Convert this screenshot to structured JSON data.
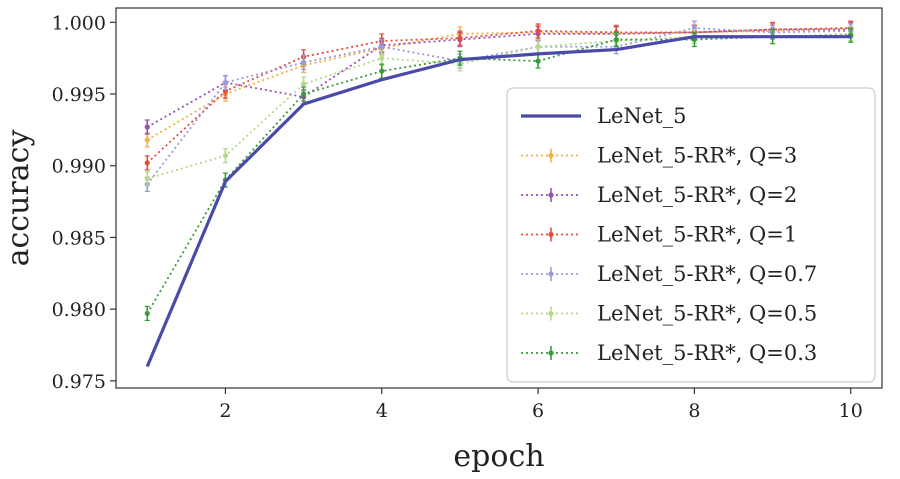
{
  "chart_data": {
    "type": "line",
    "xlabel": "epoch",
    "ylabel": "accuracy",
    "xlim": [
      0.6,
      10.4
    ],
    "ylim": [
      0.9745,
      1.001
    ],
    "x_ticks": [
      2,
      4,
      6,
      8,
      10
    ],
    "y_ticks": [
      0.975,
      0.98,
      0.985,
      0.99,
      0.995,
      1.0
    ],
    "y_tick_labels": [
      "0.975",
      "0.980",
      "0.985",
      "0.990",
      "0.995",
      "1.000"
    ],
    "x_tick_labels": [
      "2",
      "4",
      "6",
      "8",
      "10"
    ],
    "grid": false,
    "legend_position": "lower-right",
    "x": [
      1,
      2,
      3,
      4,
      5,
      6,
      7,
      8,
      9,
      10
    ],
    "series": [
      {
        "name": "LeNet_5",
        "color": "#4a4aa8",
        "style": "solid",
        "error_bars": false,
        "values": [
          0.976,
          0.9889,
          0.9943,
          0.996,
          0.9974,
          0.9978,
          0.9981,
          0.999,
          0.999,
          0.999
        ]
      },
      {
        "name": "LeNet_5-RR*, Q=3",
        "color": "#f5b041",
        "style": "dotted",
        "error_bars": true,
        "values": [
          0.9918,
          0.995,
          0.997,
          0.9982,
          0.9992,
          0.9993,
          0.9992,
          0.9993,
          0.9994,
          0.9996
        ]
      },
      {
        "name": "LeNet_5-RR*, Q=2",
        "color": "#9b4fb5",
        "style": "dotted",
        "error_bars": true,
        "values": [
          0.9927,
          0.9958,
          0.9948,
          0.9984,
          0.9988,
          0.9992,
          0.9992,
          0.9993,
          0.9995,
          0.9995
        ]
      },
      {
        "name": "LeNet_5-RR*, Q=1",
        "color": "#e74c3c",
        "style": "dotted",
        "error_bars": true,
        "values": [
          0.9902,
          0.9952,
          0.9976,
          0.9987,
          0.9989,
          0.9994,
          0.9993,
          0.9993,
          0.9995,
          0.9996
        ]
      },
      {
        "name": "LeNet_5-RR*, Q=0.7",
        "color": "#9a9ae0",
        "style": "dotted",
        "error_bars": true,
        "values": [
          0.9887,
          0.9958,
          0.9972,
          0.9983,
          0.9973,
          0.9983,
          0.9983,
          0.9996,
          0.9993,
          0.9994
        ]
      },
      {
        "name": "LeNet_5-RR*, Q=0.5",
        "color": "#b5d98a",
        "style": "dotted",
        "error_bars": true,
        "values": [
          0.9891,
          0.9907,
          0.9957,
          0.9975,
          0.9971,
          0.9983,
          0.9987,
          0.999,
          0.999,
          0.9992
        ]
      },
      {
        "name": "LeNet_5-RR*, Q=0.3",
        "color": "#3a9a3a",
        "style": "dotted",
        "error_bars": true,
        "values": [
          0.9797,
          0.989,
          0.995,
          0.9966,
          0.9975,
          0.9973,
          0.9988,
          0.9988,
          0.999,
          0.9991
        ]
      }
    ]
  }
}
